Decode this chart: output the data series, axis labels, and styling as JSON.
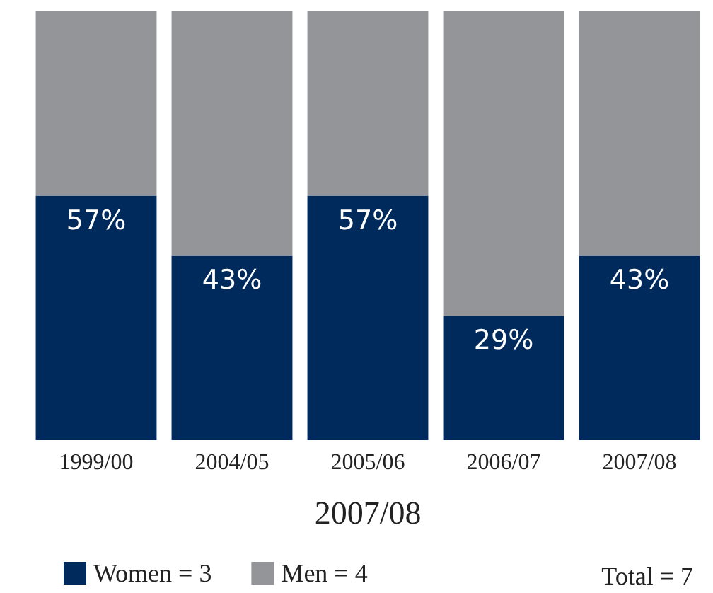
{
  "chart_data": {
    "type": "bar",
    "stacked": true,
    "xlabel": "2007/08",
    "categories": [
      "1999/00",
      "2004/05",
      "2005/06",
      "2006/07",
      "2007/08"
    ],
    "series": [
      {
        "name": "Women = 3",
        "color": "#002a5c",
        "values": [
          57,
          43,
          57,
          29,
          43
        ],
        "value_labels": [
          "57%",
          "43%",
          "57%",
          "29%",
          "43%"
        ]
      },
      {
        "name": "Men = 4",
        "color": "#939598",
        "values": [
          43,
          57,
          43,
          71,
          57
        ]
      }
    ],
    "ylim": [
      0,
      100
    ],
    "tick_labels": "x",
    "legend": "bottom",
    "annotations": [
      "Total = 7"
    ]
  }
}
